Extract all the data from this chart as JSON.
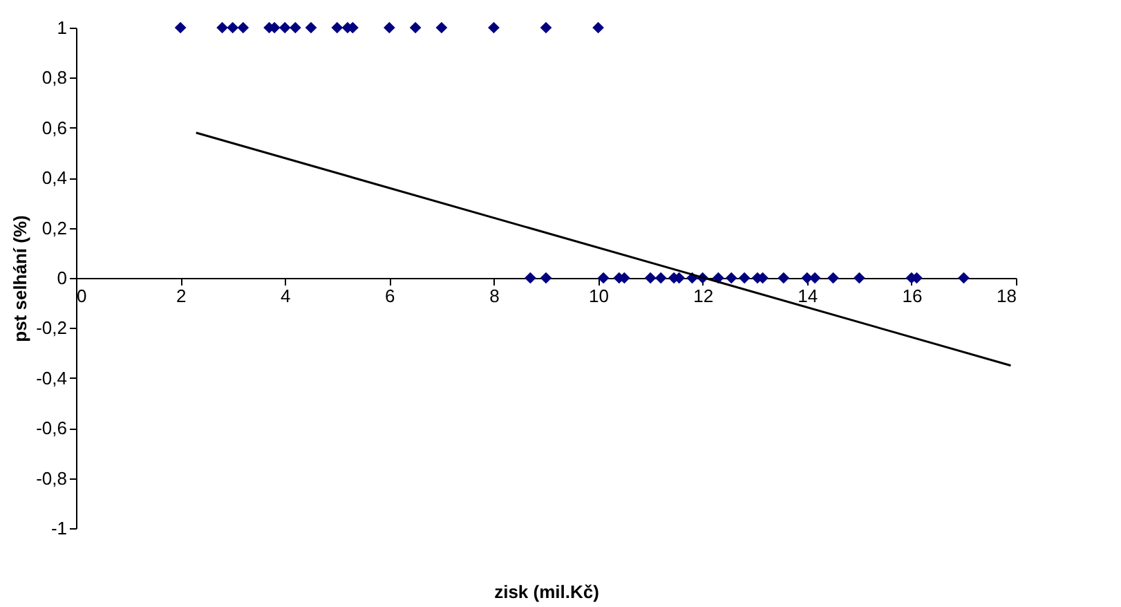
{
  "chart_data": {
    "type": "scatter",
    "xlabel": "zisk (mil.Kč)",
    "ylabel": "pst selhání (%)",
    "xlim": [
      0,
      18
    ],
    "xticks": [
      0,
      2,
      4,
      6,
      8,
      10,
      12,
      14,
      16,
      18
    ],
    "ylim": [
      -1,
      1
    ],
    "yticks": [
      {
        "value": -1,
        "label": "-1"
      },
      {
        "value": -0.8,
        "label": "-0,8"
      },
      {
        "value": -0.6,
        "label": "-0,6"
      },
      {
        "value": -0.4,
        "label": "-0,4"
      },
      {
        "value": -0.2,
        "label": "-0,2"
      },
      {
        "value": 0,
        "label": "0"
      },
      {
        "value": 0.2,
        "label": "0,2"
      },
      {
        "value": 0.4,
        "label": "0,4"
      },
      {
        "value": 0.6,
        "label": "0,6"
      },
      {
        "value": 0.8,
        "label": "0,8"
      },
      {
        "value": 1,
        "label": "1"
      }
    ],
    "grid": false,
    "marker": "diamond",
    "series": [
      {
        "type": "scatter",
        "color": "#000080",
        "x": [
          2.0,
          2.8,
          3.0,
          3.2,
          3.7,
          3.8,
          4.0,
          4.2,
          4.5,
          5.0,
          5.2,
          5.3,
          6.0,
          6.5,
          7.0,
          8.0,
          9.0,
          10.0,
          8.7,
          9.0,
          10.1,
          10.4,
          10.5,
          11.0,
          11.2,
          11.45,
          11.55,
          11.8,
          12.0,
          12.3,
          12.55,
          12.8,
          13.05,
          13.15,
          13.55,
          14.0,
          14.15,
          14.5,
          15.0,
          16.0,
          16.1,
          17.0
        ],
        "values": [
          1,
          1,
          1,
          1,
          1,
          1,
          1,
          1,
          1,
          1,
          1,
          1,
          1,
          1,
          1,
          1,
          1,
          1,
          0,
          0,
          0,
          0,
          0,
          0,
          0,
          0,
          0,
          0,
          0,
          0,
          0,
          0,
          0,
          0,
          0,
          0,
          0,
          0,
          0,
          0,
          0,
          0
        ]
      },
      {
        "type": "line",
        "color": "#000000",
        "line_style": "solid",
        "marker": "none",
        "x": [
          2.3,
          17.9
        ],
        "values": [
          0.58,
          -0.35
        ]
      }
    ]
  }
}
